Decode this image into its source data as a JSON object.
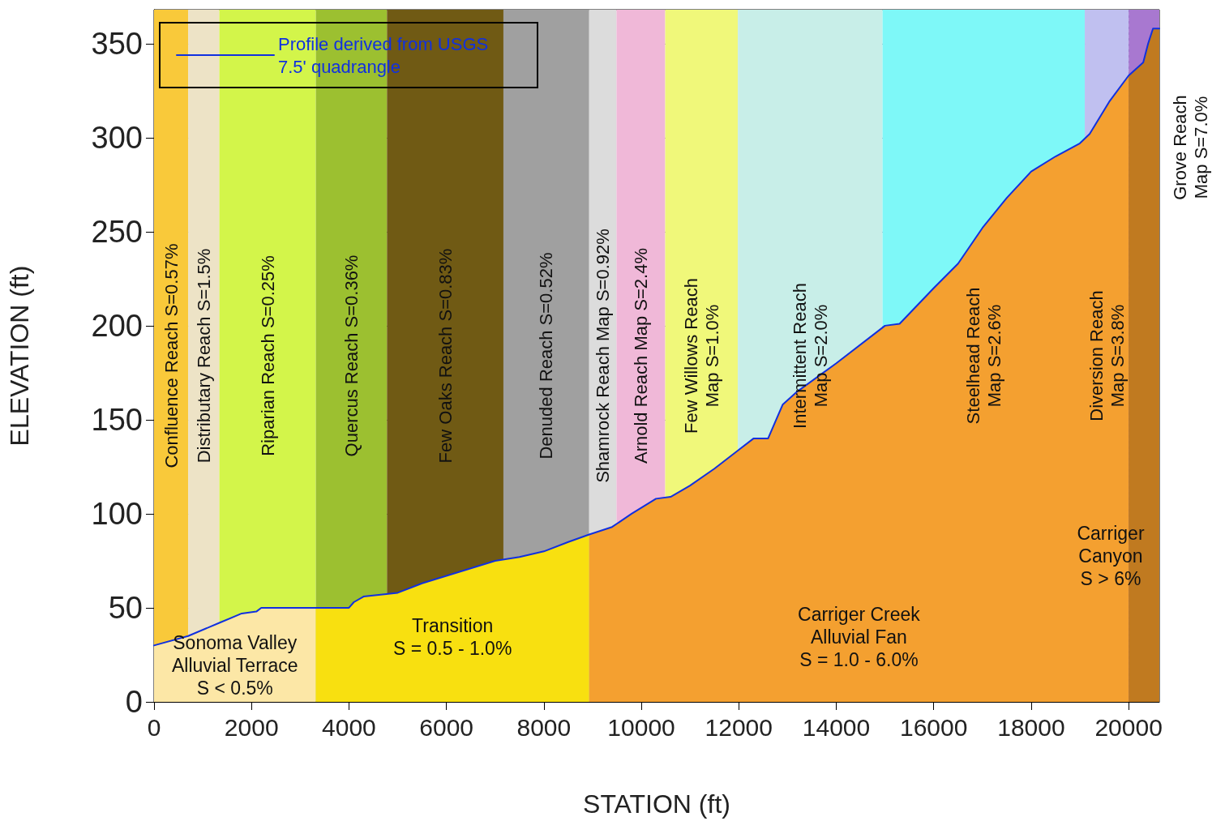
{
  "chart_data": {
    "type": "line",
    "xlabel": "STATION (ft)",
    "ylabel": "ELEVATION (ft)",
    "xlim": [
      0,
      20630
    ],
    "ylim": [
      0,
      368
    ],
    "xticks": [
      0,
      2000,
      4000,
      6000,
      8000,
      10000,
      12000,
      14000,
      16000,
      18000,
      20000
    ],
    "yticks": [
      0,
      50,
      100,
      150,
      200,
      250,
      300,
      350
    ],
    "grid": true,
    "legend": "top left",
    "marker": "none",
    "line_style": "solid",
    "series": [
      {
        "type": "area",
        "color": "#fce7a6",
        "x": [
          0,
          700,
          1340,
          1800,
          2100,
          2200,
          3320
        ],
        "values": [
          30,
          35,
          42,
          47,
          48,
          50,
          50
        ]
      },
      {
        "type": "area",
        "color": "#f8e010",
        "x": [
          3320,
          4000,
          4100,
          4300,
          5000,
          5500,
          6000,
          7000,
          7500,
          8000,
          8500,
          8930
        ],
        "values": [
          50,
          50,
          53,
          56,
          58,
          63,
          67,
          75,
          77,
          80,
          85,
          89
        ]
      },
      {
        "type": "area",
        "color": "#f4a030",
        "x": [
          8930,
          9400,
          9800,
          10300,
          10600,
          11000,
          11500,
          12000,
          12300,
          12600,
          12900,
          13200,
          14000,
          15000,
          15300,
          16000,
          16500,
          17000,
          17500,
          18000,
          18500,
          19000,
          19200,
          19600,
          20000
        ],
        "values": [
          89,
          93,
          100,
          108,
          109,
          115,
          124,
          134,
          140,
          140,
          158,
          165,
          180,
          200,
          201,
          220,
          233,
          252,
          268,
          282,
          290,
          297,
          302,
          319,
          333
        ]
      },
      {
        "type": "area",
        "color": "#c07a20",
        "x": [
          20000,
          20300,
          20400,
          20500,
          20630
        ],
        "values": [
          333,
          340,
          350,
          358,
          358
        ]
      },
      {
        "name": "Profile derived from USGS 7.5' quadrangle",
        "color": "#1030e0",
        "x": [
          0,
          700,
          1340,
          1800,
          2100,
          2200,
          4000,
          4100,
          4300,
          5000,
          5500,
          6000,
          7000,
          7500,
          8000,
          8500,
          8930,
          9400,
          9800,
          10300,
          10600,
          11000,
          11500,
          12000,
          12300,
          12600,
          12900,
          13200,
          14000,
          15000,
          15300,
          16000,
          16500,
          17000,
          17500,
          18000,
          18500,
          19000,
          19200,
          19600,
          20000,
          20300,
          20400,
          20500,
          20630
        ],
        "values": [
          30,
          35,
          42,
          47,
          48,
          50,
          50,
          53,
          56,
          58,
          63,
          67,
          75,
          77,
          80,
          85,
          89,
          93,
          100,
          108,
          109,
          115,
          124,
          134,
          140,
          140,
          158,
          165,
          180,
          200,
          201,
          220,
          233,
          252,
          268,
          282,
          290,
          297,
          302,
          319,
          333,
          340,
          350,
          358,
          358
        ]
      }
    ],
    "bands": [
      {
        "axis": "x",
        "from": 0,
        "to": 700,
        "label": "Confluence Reach S=0.57%",
        "color": "#f9c93a"
      },
      {
        "axis": "x",
        "from": 700,
        "to": 1340,
        "label": "Distributary Reach S=1.5%",
        "color": "#ede3c6"
      },
      {
        "axis": "x",
        "from": 1340,
        "to": 3320,
        "label": "Riparian Reach S=0.25%",
        "color": "#d3f54a"
      },
      {
        "axis": "x",
        "from": 3320,
        "to": 4780,
        "label": "Quercus Reach S=0.36%",
        "color": "#9cc030"
      },
      {
        "axis": "x",
        "from": 4780,
        "to": 7170,
        "label": "Few Oaks Reach S=0.83%",
        "color": "#705a14"
      },
      {
        "axis": "x",
        "from": 7170,
        "to": 8930,
        "label": "Denuded Reach S=0.52%",
        "color": "#a0a0a0"
      },
      {
        "axis": "x",
        "from": 8930,
        "to": 9490,
        "label": "Shamrock Reach Map S=0.92%",
        "color": "#dcdcdc"
      },
      {
        "axis": "x",
        "from": 9490,
        "to": 10490,
        "label": "Arnold Reach Map S=2.4%",
        "color": "#f0b8d8"
      },
      {
        "axis": "x",
        "from": 10490,
        "to": 11980,
        "label": "Few Willows Reach\nMap S=1.0%",
        "color": "#f0f87a"
      },
      {
        "axis": "x",
        "from": 11980,
        "to": 14950,
        "label": "Intermittent Reach\nMap S=2.0%",
        "color": "#c8eee8"
      },
      {
        "axis": "x",
        "from": 14950,
        "to": 19100,
        "label": "Steelhead Reach\nMap S=2.6%",
        "color": "#7ef8f8"
      },
      {
        "axis": "x",
        "from": 19100,
        "to": 20000,
        "label": "Diversion Reach\nMap S=3.8%",
        "color": "#c0c0f0"
      },
      {
        "axis": "x",
        "from": 20000,
        "to": 20630,
        "label": "Grove Reach\nMap S=7.0%",
        "color": "#a878d0"
      }
    ],
    "annotations": [
      "Sonoma Valley\nAlluvial Terrace\nS < 0.5%",
      "Transition\nS = 0.5 - 1.0%",
      "Carriger Creek\nAlluvial Fan\nS = 1.0 - 6.0%",
      "Carriger\nCanyon\nS > 6%"
    ]
  }
}
